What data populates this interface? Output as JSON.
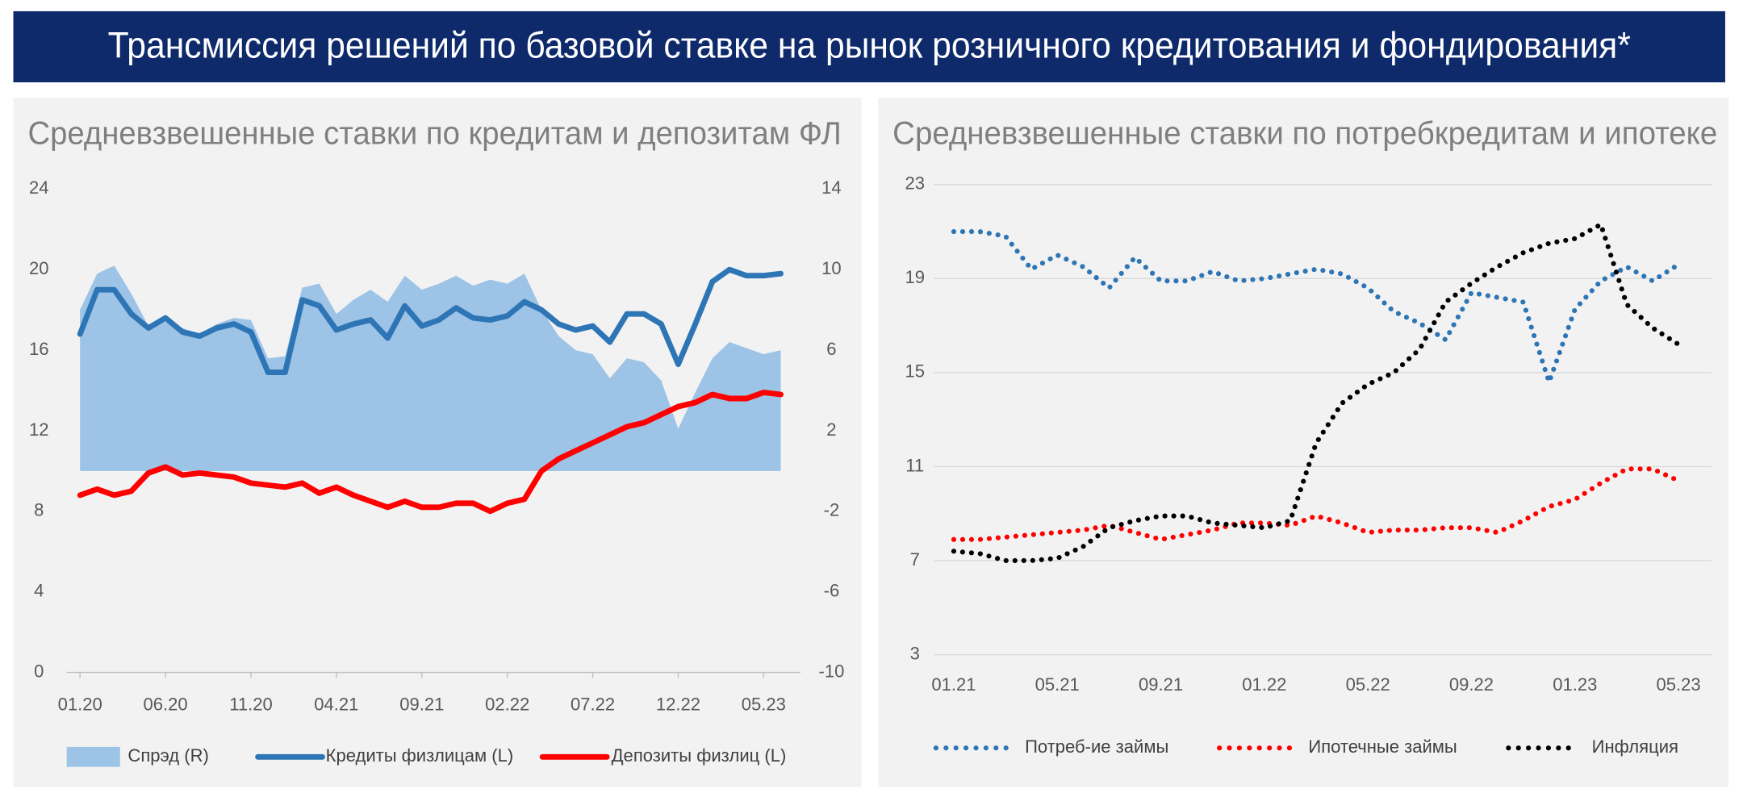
{
  "header": {
    "title": "Трансмиссия решений по базовой ставке на рынок розничного кредитования и фондирования*"
  },
  "chart_data": [
    {
      "type": "line",
      "title": "Средневзвешенные ставки по кредитам и депозитам ФЛ",
      "categories": [
        "01.20",
        null,
        null,
        null,
        null,
        "06.20",
        null,
        null,
        null,
        null,
        "11.20",
        null,
        null,
        null,
        null,
        "04.21",
        null,
        null,
        null,
        null,
        "09.21",
        null,
        null,
        null,
        null,
        "02.22",
        null,
        null,
        null,
        null,
        "07.22",
        null,
        null,
        null,
        null,
        "12.22",
        null,
        null,
        null,
        null,
        "05.23",
        null
      ],
      "ylim": [
        0,
        24
      ],
      "yticks": [
        0,
        4,
        8,
        12,
        16,
        20,
        24
      ],
      "y2lim": [
        -10,
        14
      ],
      "y2ticks": [
        -10,
        -6,
        -2,
        2,
        6,
        10,
        14
      ],
      "grid": false,
      "series": [
        {
          "name": "Спрэд (R)",
          "color": "#9dc3e6",
          "style": "area",
          "axis": "y2",
          "values": [
            8.0,
            9.8,
            10.2,
            8.8,
            7.2,
            7.4,
            7.1,
            6.8,
            7.3,
            7.6,
            7.5,
            5.6,
            5.7,
            9.1,
            9.3,
            7.8,
            8.5,
            9.0,
            8.4,
            9.7,
            9.0,
            9.3,
            9.7,
            9.2,
            9.5,
            9.3,
            9.8,
            8.0,
            6.7,
            6.0,
            5.8,
            4.6,
            5.6,
            5.4,
            4.5,
            2.1,
            3.9,
            5.6,
            6.4,
            6.1,
            5.8,
            6.0
          ]
        },
        {
          "name": "Кредиты физлицам (L)",
          "color": "#2e75b6",
          "style": "line",
          "values": [
            16.8,
            19.0,
            19.0,
            17.8,
            17.1,
            17.6,
            16.9,
            16.7,
            17.1,
            17.3,
            16.9,
            14.9,
            14.9,
            18.5,
            18.2,
            17.0,
            17.3,
            17.5,
            16.6,
            18.2,
            17.2,
            17.5,
            18.1,
            17.6,
            17.5,
            17.7,
            18.4,
            18.0,
            17.3,
            17.0,
            17.2,
            16.4,
            17.8,
            17.8,
            17.3,
            15.3,
            17.3,
            19.4,
            20.0,
            19.7,
            19.7,
            19.8
          ]
        },
        {
          "name": "Депозиты физлиц (L)",
          "color": "#ff0000",
          "style": "line",
          "values": [
            8.8,
            9.1,
            8.8,
            9.0,
            9.9,
            10.2,
            9.8,
            9.9,
            9.8,
            9.7,
            9.4,
            9.3,
            9.2,
            9.4,
            8.9,
            9.2,
            8.8,
            8.5,
            8.2,
            8.5,
            8.2,
            8.2,
            8.4,
            8.4,
            8.0,
            8.4,
            8.6,
            10.0,
            10.6,
            11.0,
            11.4,
            11.8,
            12.2,
            12.4,
            12.8,
            13.2,
            13.4,
            13.8,
            13.6,
            13.6,
            13.9,
            13.8
          ]
        }
      ]
    },
    {
      "type": "line",
      "title": "Средневзвешенные ставки по потребкредитам и ипотеке",
      "categories": [
        "01.21",
        null,
        null,
        null,
        "05.21",
        null,
        null,
        null,
        "09.21",
        null,
        null,
        null,
        "01.22",
        null,
        null,
        null,
        "05.22",
        null,
        null,
        null,
        "09.22",
        null,
        null,
        null,
        "01.23",
        null,
        null,
        null,
        "05.23"
      ],
      "ylim": [
        3,
        23
      ],
      "yticks": [
        3,
        7,
        11,
        15,
        19,
        23
      ],
      "grid": true,
      "series": [
        {
          "name": "Потреб-ие займы",
          "color": "#2e75b6",
          "style": "dotted",
          "values": [
            21.0,
            21.0,
            20.8,
            19.4,
            20.0,
            19.5,
            18.6,
            19.9,
            18.9,
            18.9,
            19.3,
            18.9,
            19.0,
            19.2,
            19.4,
            19.2,
            18.6,
            17.6,
            17.1,
            16.4,
            18.4,
            18.2,
            18.0,
            14.6,
            17.7,
            18.9,
            19.5,
            18.9,
            19.6
          ]
        },
        {
          "name": "Ипотечные займы",
          "color": "#ff0000",
          "style": "dotted",
          "values": [
            7.9,
            7.9,
            8.0,
            8.1,
            8.2,
            8.3,
            8.5,
            8.2,
            7.9,
            8.1,
            8.3,
            8.6,
            8.6,
            8.5,
            8.9,
            8.6,
            8.2,
            8.3,
            8.3,
            8.4,
            8.4,
            8.2,
            8.7,
            9.3,
            9.6,
            10.3,
            10.9,
            10.9,
            10.4
          ]
        },
        {
          "name": "Инфляция",
          "color": "#000000",
          "style": "dotted",
          "values": [
            7.4,
            7.3,
            7.0,
            7.0,
            7.1,
            7.6,
            8.4,
            8.7,
            8.9,
            8.9,
            8.6,
            8.5,
            8.4,
            8.7,
            12.0,
            13.7,
            14.5,
            15.0,
            16.0,
            18.0,
            18.8,
            19.5,
            20.1,
            20.5,
            20.7,
            21.3,
            17.9,
            16.9,
            16.2
          ]
        }
      ]
    }
  ]
}
